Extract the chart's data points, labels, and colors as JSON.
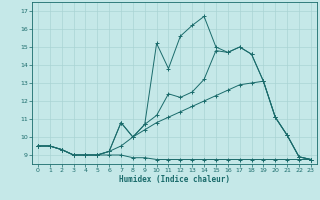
{
  "title": "",
  "xlabel": "Humidex (Indice chaleur)",
  "xlim": [
    -0.5,
    23.5
  ],
  "ylim": [
    8.5,
    17.5
  ],
  "xticks": [
    0,
    1,
    2,
    3,
    4,
    5,
    6,
    7,
    8,
    9,
    10,
    11,
    12,
    13,
    14,
    15,
    16,
    17,
    18,
    19,
    20,
    21,
    22,
    23
  ],
  "yticks": [
    9,
    10,
    11,
    12,
    13,
    14,
    15,
    16,
    17
  ],
  "bg_color": "#c5e8e8",
  "line_color": "#1a6b6b",
  "grid_color": "#aad4d4",
  "lines": [
    {
      "x": [
        0,
        1,
        2,
        3,
        4,
        5,
        6,
        7,
        8,
        9,
        10,
        11,
        12,
        13,
        14,
        15,
        16,
        17,
        18,
        19,
        20,
        21,
        22,
        23
      ],
      "y": [
        9.5,
        9.5,
        9.3,
        9.0,
        9.0,
        9.0,
        9.0,
        9.0,
        8.85,
        8.85,
        8.75,
        8.75,
        8.75,
        8.75,
        8.75,
        8.75,
        8.75,
        8.75,
        8.75,
        8.75,
        8.75,
        8.75,
        8.75,
        8.75
      ]
    },
    {
      "x": [
        0,
        1,
        2,
        3,
        4,
        5,
        6,
        7,
        8,
        9,
        10,
        11,
        12,
        13,
        14,
        15,
        16,
        17,
        18,
        19,
        20,
        21,
        22,
        23
      ],
      "y": [
        9.5,
        9.5,
        9.3,
        9.0,
        9.0,
        9.0,
        9.2,
        9.5,
        10.0,
        10.4,
        10.8,
        11.1,
        11.4,
        11.7,
        12.0,
        12.3,
        12.6,
        12.9,
        13.0,
        13.1,
        11.1,
        10.1,
        8.9,
        8.75
      ]
    },
    {
      "x": [
        0,
        1,
        2,
        3,
        4,
        5,
        6,
        7,
        8,
        9,
        10,
        11,
        12,
        13,
        14,
        15,
        16,
        17,
        18,
        19,
        20,
        21,
        22,
        23
      ],
      "y": [
        9.5,
        9.5,
        9.3,
        9.0,
        9.0,
        9.0,
        9.2,
        10.8,
        10.0,
        10.7,
        11.2,
        12.4,
        12.2,
        12.5,
        13.2,
        14.8,
        14.7,
        15.0,
        14.6,
        13.1,
        11.1,
        10.1,
        8.9,
        8.75
      ]
    },
    {
      "x": [
        0,
        1,
        2,
        3,
        4,
        5,
        6,
        7,
        8,
        9,
        10,
        11,
        12,
        13,
        14,
        15,
        16,
        17,
        18,
        19,
        20,
        21,
        22,
        23
      ],
      "y": [
        9.5,
        9.5,
        9.3,
        9.0,
        9.0,
        9.0,
        9.2,
        10.8,
        10.0,
        10.7,
        15.2,
        13.8,
        15.6,
        16.2,
        16.7,
        15.0,
        14.7,
        15.0,
        14.6,
        13.1,
        11.1,
        10.1,
        8.9,
        8.75
      ]
    }
  ]
}
